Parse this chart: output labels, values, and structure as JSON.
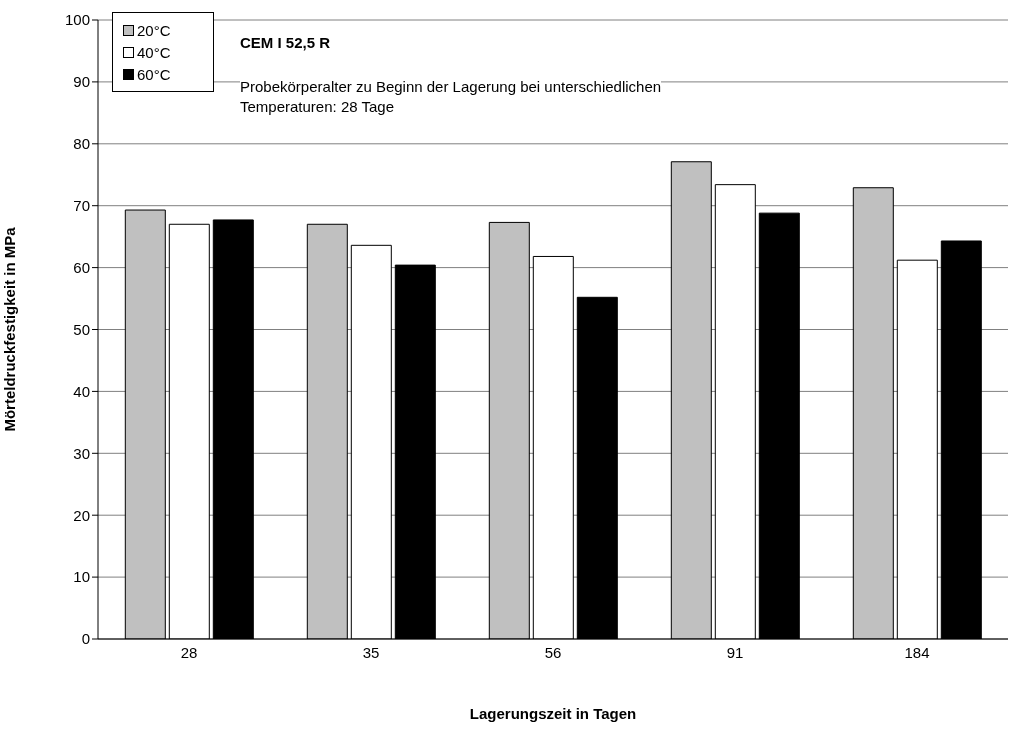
{
  "chart_data": {
    "type": "bar",
    "xlabel": "Lagerungszeit  in Tagen",
    "ylabel": "Mörteldruckfestigkeit  in MPa",
    "categories": [
      "28",
      "35",
      "56",
      "91",
      "184"
    ],
    "series": [
      {
        "name": "20°C",
        "color": "#c0c0c0",
        "values": [
          69.3,
          67.0,
          67.3,
          77.1,
          72.9
        ]
      },
      {
        "name": "40°C",
        "color": "#ffffff",
        "values": [
          67.0,
          63.6,
          61.8,
          73.4,
          61.2
        ]
      },
      {
        "name": "60°C",
        "color": "#000000",
        "values": [
          67.7,
          60.4,
          55.2,
          68.8,
          64.3
        ]
      }
    ],
    "ylim": [
      0,
      100
    ],
    "yticks": [
      0,
      10,
      20,
      30,
      40,
      50,
      60,
      70,
      80,
      90,
      100
    ],
    "grid": "y",
    "legend": "top left",
    "annotations": [
      "CEM I 52,5 R",
      "Probekörperalter zu Beginn der Lagerung bei unterschiedlichen Temperaturen: 28 Tage"
    ]
  }
}
